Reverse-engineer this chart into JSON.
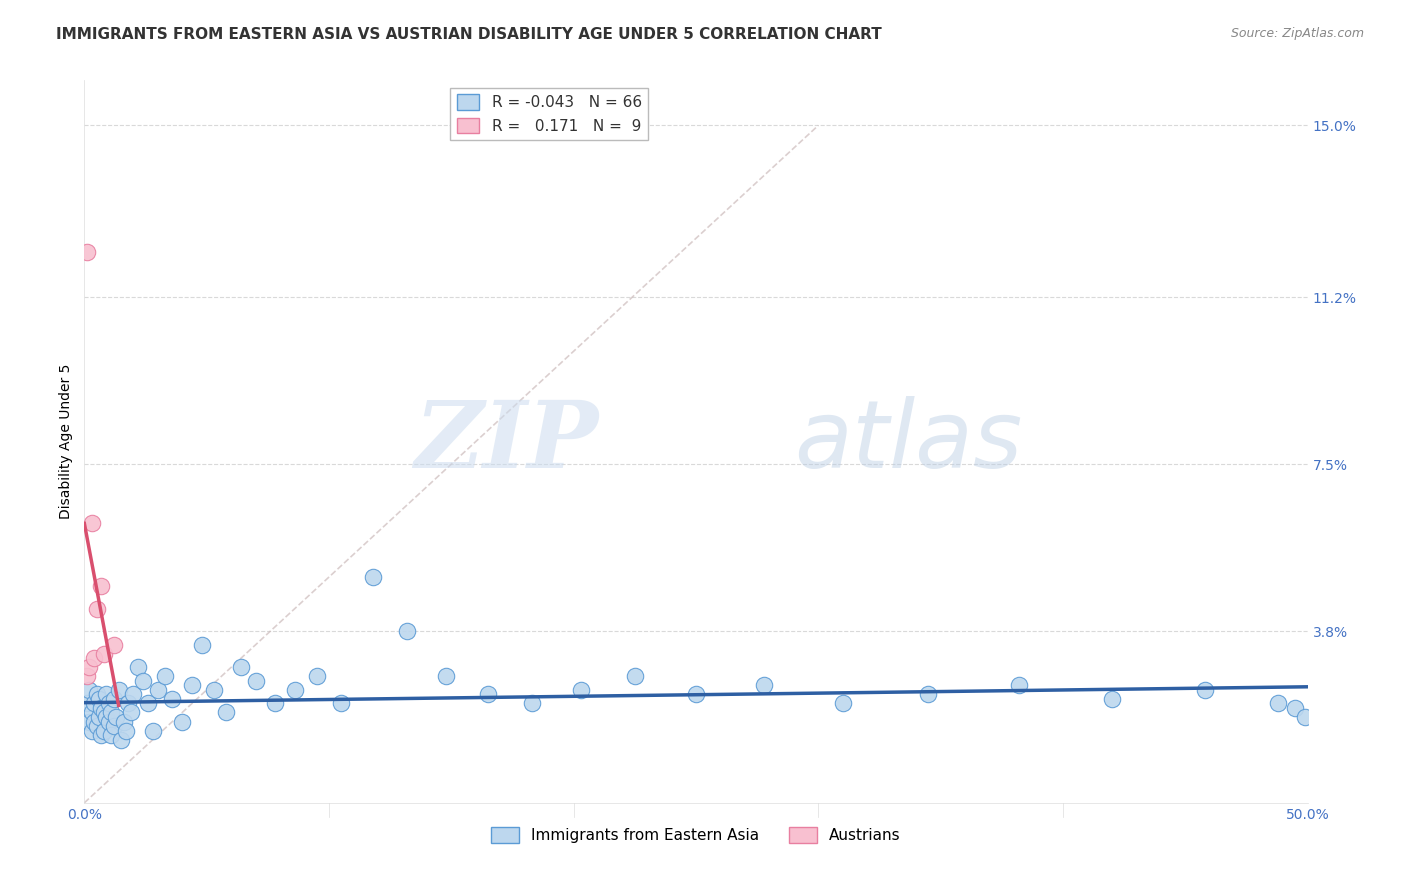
{
  "title": "IMMIGRANTS FROM EASTERN ASIA VS AUSTRIAN DISABILITY AGE UNDER 5 CORRELATION CHART",
  "source": "Source: ZipAtlas.com",
  "ylabel": "Disability Age Under 5",
  "xlim": [
    0.0,
    0.5
  ],
  "ylim": [
    0.0,
    0.16
  ],
  "xticks": [
    0.0,
    0.1,
    0.2,
    0.3,
    0.4,
    0.5
  ],
  "xticklabels": [
    "0.0%",
    "",
    "",
    "",
    "",
    "50.0%"
  ],
  "ytick_positions": [
    0.038,
    0.075,
    0.112,
    0.15
  ],
  "ytick_labels": [
    "3.8%",
    "7.5%",
    "11.2%",
    "15.0%"
  ],
  "blue_R": "-0.043",
  "blue_N": "66",
  "pink_R": "0.171",
  "pink_N": "9",
  "blue_color": "#bdd7ee",
  "blue_edge_color": "#5b9bd5",
  "pink_color": "#f8c0d0",
  "pink_edge_color": "#e87fa0",
  "blue_line_color": "#2e5fa3",
  "pink_line_color": "#d94f6e",
  "grid_color": "#d0d0d0",
  "watermark_zip": "ZIP",
  "watermark_atlas": "atlas",
  "blue_label": "Immigrants from Eastern Asia",
  "pink_label": "Austrians",
  "blue_scatter_x": [
    0.001,
    0.002,
    0.002,
    0.003,
    0.003,
    0.004,
    0.004,
    0.005,
    0.005,
    0.006,
    0.006,
    0.007,
    0.007,
    0.008,
    0.008,
    0.009,
    0.009,
    0.01,
    0.01,
    0.011,
    0.011,
    0.012,
    0.012,
    0.013,
    0.014,
    0.015,
    0.016,
    0.017,
    0.018,
    0.019,
    0.02,
    0.022,
    0.024,
    0.026,
    0.028,
    0.03,
    0.033,
    0.036,
    0.04,
    0.044,
    0.048,
    0.053,
    0.058,
    0.064,
    0.07,
    0.078,
    0.086,
    0.095,
    0.105,
    0.118,
    0.132,
    0.148,
    0.165,
    0.183,
    0.203,
    0.225,
    0.25,
    0.278,
    0.31,
    0.345,
    0.382,
    0.42,
    0.458,
    0.488,
    0.495,
    0.499
  ],
  "blue_scatter_y": [
    0.022,
    0.018,
    0.025,
    0.02,
    0.016,
    0.022,
    0.018,
    0.024,
    0.017,
    0.019,
    0.023,
    0.015,
    0.021,
    0.016,
    0.02,
    0.019,
    0.024,
    0.018,
    0.022,
    0.015,
    0.02,
    0.017,
    0.023,
    0.019,
    0.025,
    0.014,
    0.018,
    0.016,
    0.022,
    0.02,
    0.024,
    0.03,
    0.027,
    0.022,
    0.016,
    0.025,
    0.028,
    0.023,
    0.018,
    0.026,
    0.035,
    0.025,
    0.02,
    0.03,
    0.027,
    0.022,
    0.025,
    0.028,
    0.022,
    0.05,
    0.038,
    0.028,
    0.024,
    0.022,
    0.025,
    0.028,
    0.024,
    0.026,
    0.022,
    0.024,
    0.026,
    0.023,
    0.025,
    0.022,
    0.021,
    0.019
  ],
  "pink_scatter_x": [
    0.001,
    0.001,
    0.002,
    0.003,
    0.004,
    0.005,
    0.007,
    0.008,
    0.012
  ],
  "pink_scatter_y": [
    0.028,
    0.122,
    0.03,
    0.062,
    0.032,
    0.043,
    0.048,
    0.033,
    0.035
  ],
  "background_color": "#ffffff",
  "title_fontsize": 11,
  "axis_label_fontsize": 10,
  "tick_fontsize": 10,
  "legend_fontsize": 10,
  "source_fontsize": 9
}
